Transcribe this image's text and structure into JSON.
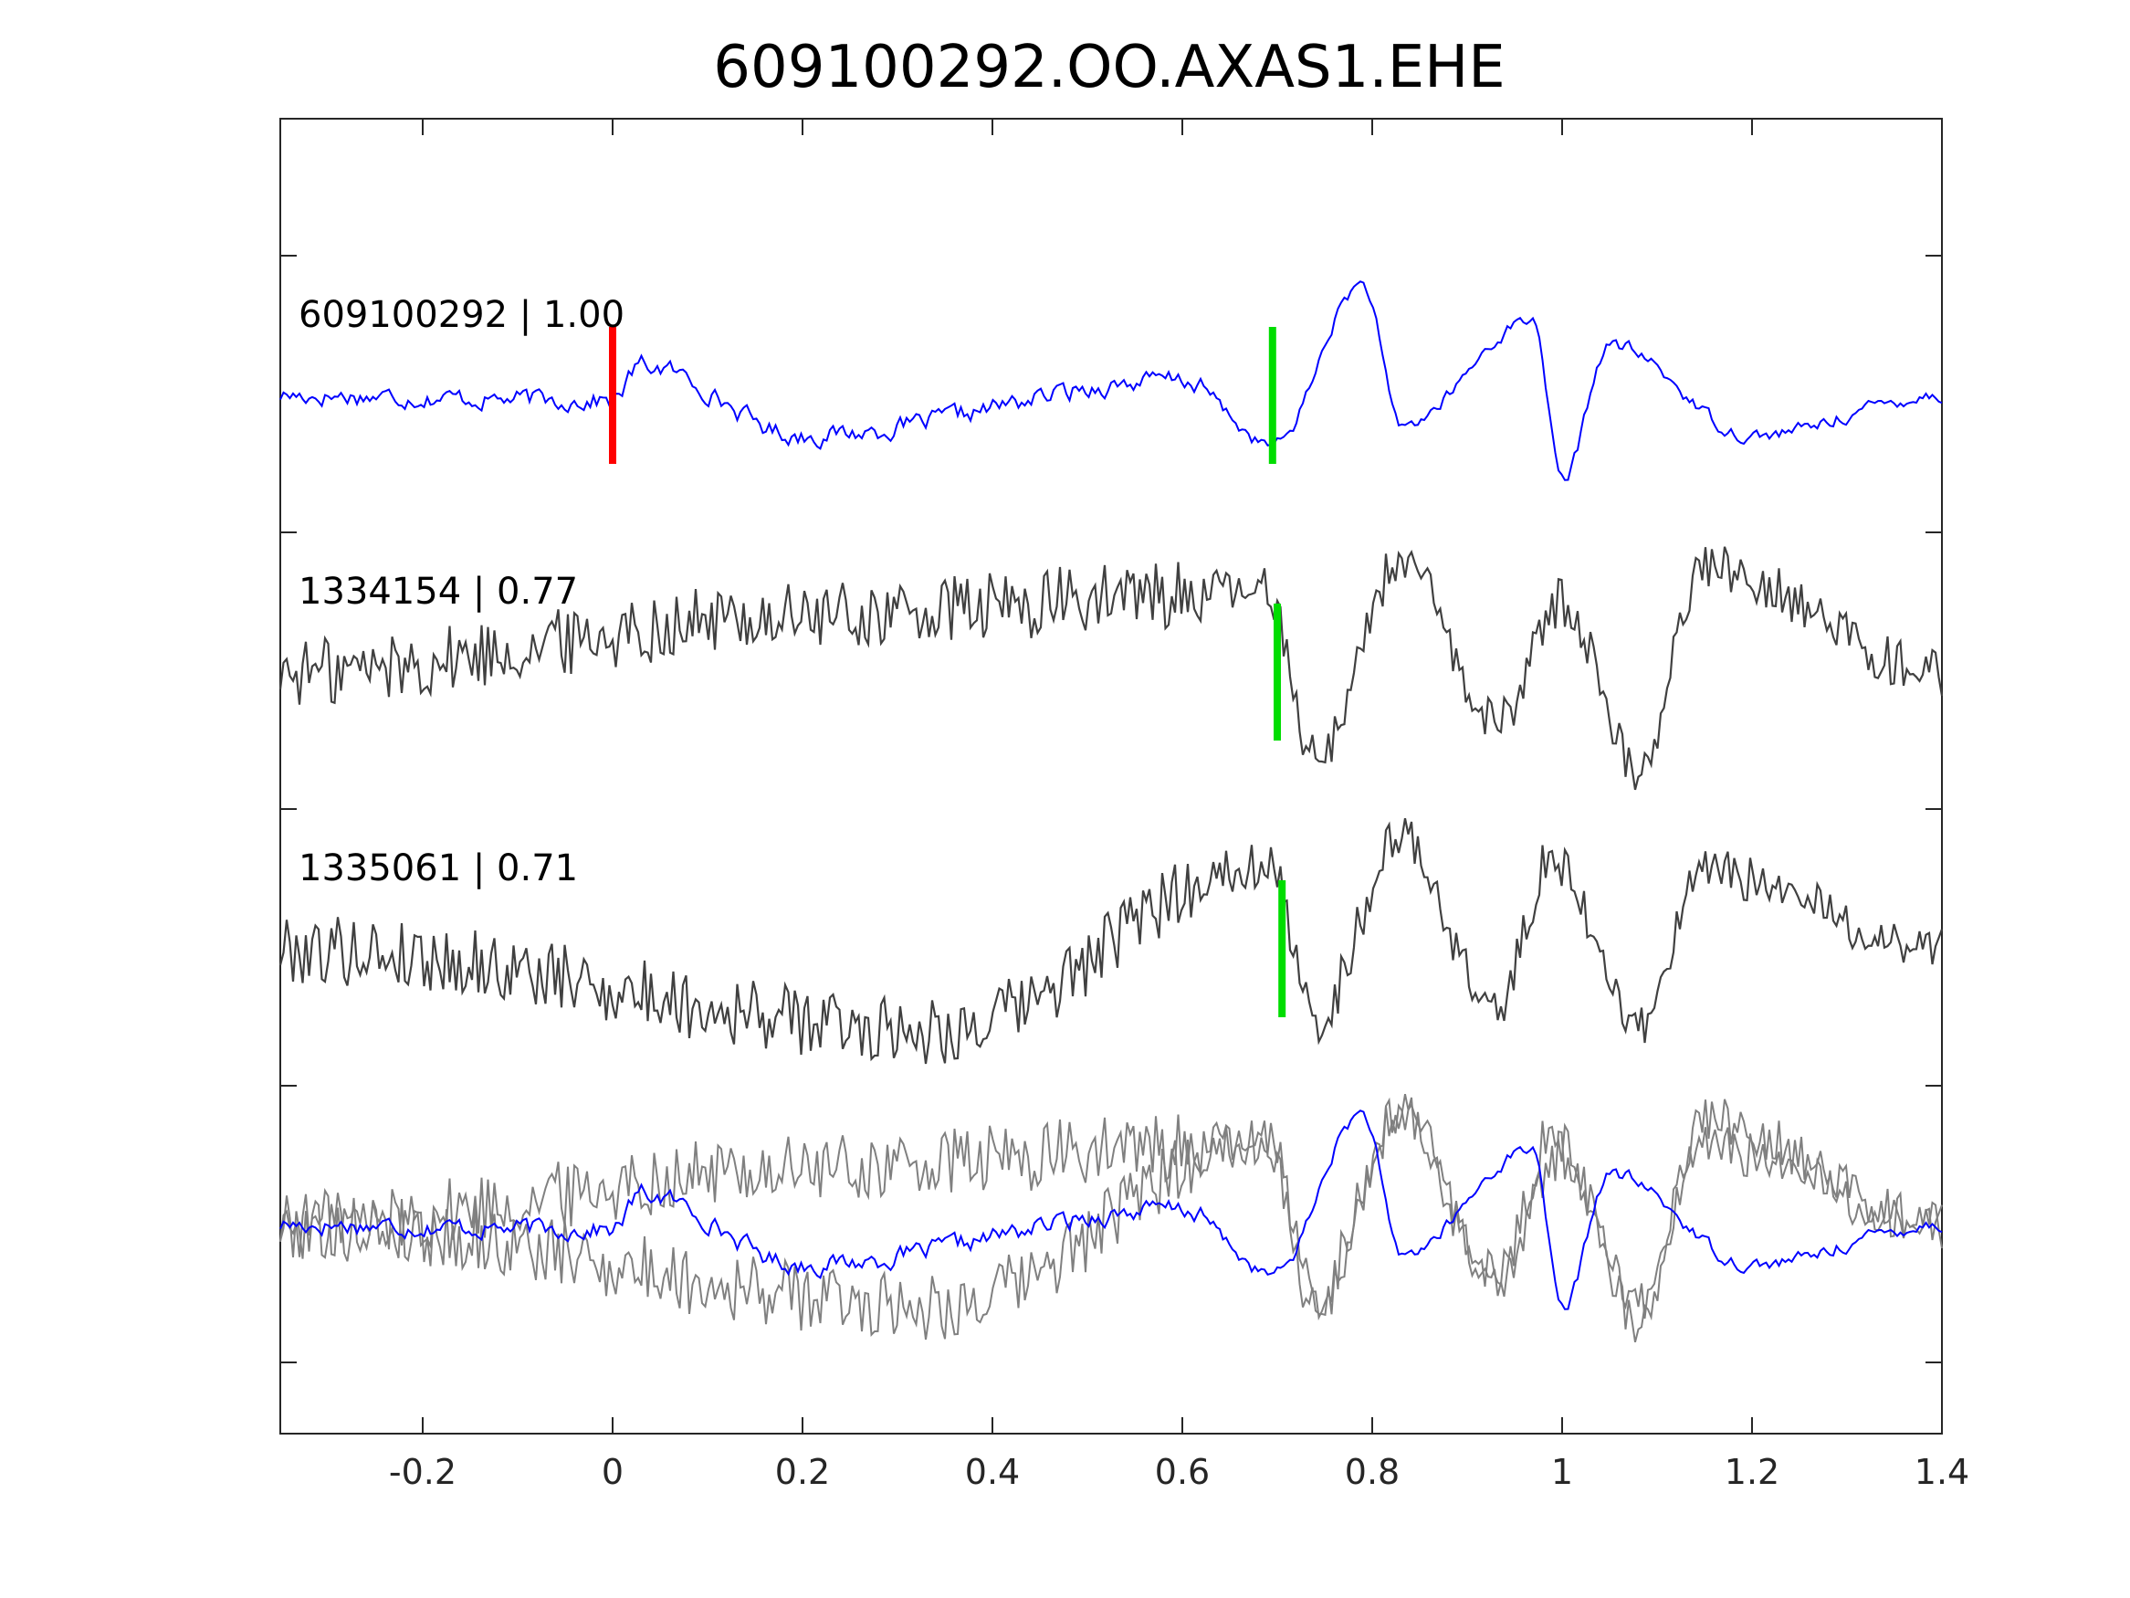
{
  "chart_data": {
    "type": "line",
    "title": "609100292.OO.AXAS1.EHE",
    "xlabel": "",
    "ylabel": "",
    "xlim": [
      -0.35,
      1.4
    ],
    "x_ticks": [
      -0.2,
      0,
      0.2,
      0.4,
      0.6,
      0.8,
      1,
      1.2,
      1.4
    ],
    "x_tick_labels": [
      "-0.2",
      "0",
      "0.2",
      "0.4",
      "0.6",
      "0.8",
      "1",
      "1.2",
      "1.4"
    ],
    "grid": false,
    "traces": [
      {
        "name": "609100292",
        "label": "609100292 | 1.00",
        "color": "#0000ff",
        "offset_row": 0,
        "marker_red_x": 0.0,
        "marker_green_x": 0.695,
        "key_points": [
          [
            -0.35,
            0
          ],
          [
            0.0,
            -0.05
          ],
          [
            0.03,
            0.3
          ],
          [
            0.2,
            -0.4
          ],
          [
            0.6,
            0.15
          ],
          [
            0.695,
            -0.5
          ],
          [
            0.79,
            1.1
          ],
          [
            0.83,
            -0.3
          ],
          [
            0.97,
            0.75
          ],
          [
            1.0,
            -0.85
          ],
          [
            1.05,
            0.5
          ],
          [
            1.2,
            -0.4
          ],
          [
            1.4,
            0
          ]
        ]
      },
      {
        "name": "1334154",
        "label": "1334154 | 0.77",
        "color": "#404040",
        "offset_row": 1,
        "marker_green_x": 0.7,
        "key_points": [
          [
            -0.35,
            0
          ],
          [
            0.2,
            0.55
          ],
          [
            0.69,
            0.8
          ],
          [
            0.74,
            -0.85
          ],
          [
            0.83,
            1.1
          ],
          [
            0.93,
            -0.5
          ],
          [
            1.0,
            0.7
          ],
          [
            1.08,
            -0.95
          ],
          [
            1.15,
            1.05
          ],
          [
            1.4,
            0
          ]
        ]
      },
      {
        "name": "1335061",
        "label": "1335061 | 0.71",
        "color": "#404040",
        "offset_row": 2,
        "marker_green_x": 0.705,
        "key_points": [
          [
            -0.35,
            0
          ],
          [
            0.35,
            -0.8
          ],
          [
            0.69,
            0.85
          ],
          [
            0.74,
            -0.7
          ],
          [
            0.83,
            1.1
          ],
          [
            0.93,
            -0.6
          ],
          [
            0.99,
            0.9
          ],
          [
            1.08,
            -0.75
          ],
          [
            1.15,
            0.75
          ],
          [
            1.4,
            0
          ]
        ]
      },
      {
        "name": "overlay",
        "label": "",
        "color": "#808080",
        "offset_row": 3
      }
    ]
  }
}
